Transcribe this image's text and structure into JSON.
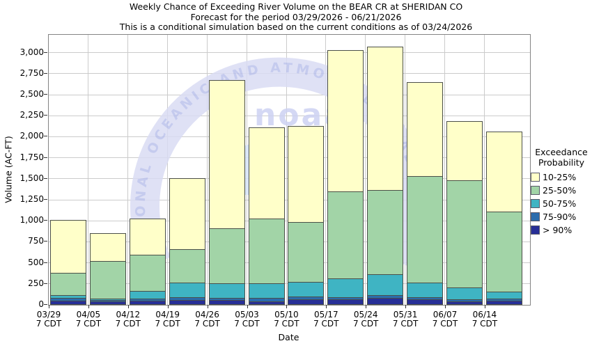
{
  "title": {
    "line1": "Weekly Chance of Exceeding River Volume on the BEAR CR at SHERIDAN CO",
    "line2": "Forecast for the period 03/29/2026 - 06/21/2026",
    "line3": "This is a conditional simulation based on the current conditions as of 03/24/2026"
  },
  "axes": {
    "y_label": "Volume (AC-FT)",
    "x_label": "Date",
    "y_ticks": [
      "0",
      "250",
      "500",
      "750",
      "1,000",
      "1,250",
      "1,500",
      "1,750",
      "2,000",
      "2,250",
      "2,500",
      "2,750",
      "3,000"
    ]
  },
  "legend": {
    "title_line1": "Exceedance",
    "title_line2": "Probability",
    "items": [
      {
        "label": "10-25%",
        "color": "#FFFFC9"
      },
      {
        "label": "25-50%",
        "color": "#A2D4A7"
      },
      {
        "label": "50-75%",
        "color": "#3FB4C3"
      },
      {
        "label": "75-90%",
        "color": "#2A6CAD"
      },
      {
        "label": "> 90%",
        "color": "#272F97"
      }
    ]
  },
  "watermark": {
    "arc_text": "NATIONAL OCEANIC AND ATMOSPHERIC ADMI",
    "word": "noaa"
  },
  "chart_data": {
    "type": "bar",
    "stacked": true,
    "title": "Weekly Chance of Exceeding River Volume on the BEAR CR at SHERIDAN CO",
    "subtitle": "Forecast for the period 03/29/2026 - 06/21/2026",
    "note": "This is a conditional simulation based on the current conditions as of 03/24/2026",
    "xlabel": "Date",
    "ylabel": "Volume (AC-FT)",
    "ylim": [
      0,
      3212
    ],
    "grid": true,
    "legend_position": "right",
    "legend_title": "Exceedance Probability",
    "categories": [
      {
        "date": "03/29",
        "time": "7 CDT"
      },
      {
        "date": "04/05",
        "time": "7 CDT"
      },
      {
        "date": "04/12",
        "time": "7 CDT"
      },
      {
        "date": "04/19",
        "time": "7 CDT"
      },
      {
        "date": "04/26",
        "time": "7 CDT"
      },
      {
        "date": "05/03",
        "time": "7 CDT"
      },
      {
        "date": "05/10",
        "time": "7 CDT"
      },
      {
        "date": "05/17",
        "time": "7 CDT"
      },
      {
        "date": "05/24",
        "time": "7 CDT"
      },
      {
        "date": "05/31",
        "time": "7 CDT"
      },
      {
        "date": "06/07",
        "time": "7 CDT"
      },
      {
        "date": "06/14",
        "time": "7 CDT"
      }
    ],
    "series": [
      {
        "name": "> 90%",
        "color": "#272F97",
        "values": [
          45,
          31,
          41,
          52,
          47,
          36,
          55,
          55,
          72,
          58,
          35,
          41
        ]
      },
      {
        "name": "75-90%",
        "color": "#2A6CAD",
        "values": [
          27,
          16,
          24,
          28,
          28,
          36,
          35,
          30,
          33,
          25,
          20,
          23
        ]
      },
      {
        "name": "50-75%",
        "color": "#3FB4C3",
        "values": [
          33,
          18,
          90,
          175,
          175,
          178,
          175,
          225,
          250,
          172,
          145,
          81
        ]
      },
      {
        "name": "25-50%",
        "color": "#A2D4A7",
        "values": [
          270,
          450,
          435,
          395,
          655,
          765,
          710,
          1030,
          1005,
          1270,
          1275,
          955
        ]
      },
      {
        "name": "10-25%",
        "color": "#FFFFC9",
        "values": [
          625,
          330,
          425,
          850,
          1760,
          1085,
          1145,
          1685,
          1700,
          1115,
          700,
          950
        ]
      }
    ],
    "stack_totals": [
      1000,
      845,
      1015,
      1500,
      2665,
      2100,
      2120,
      3025,
      3060,
      2640,
      2175,
      2050
    ]
  }
}
